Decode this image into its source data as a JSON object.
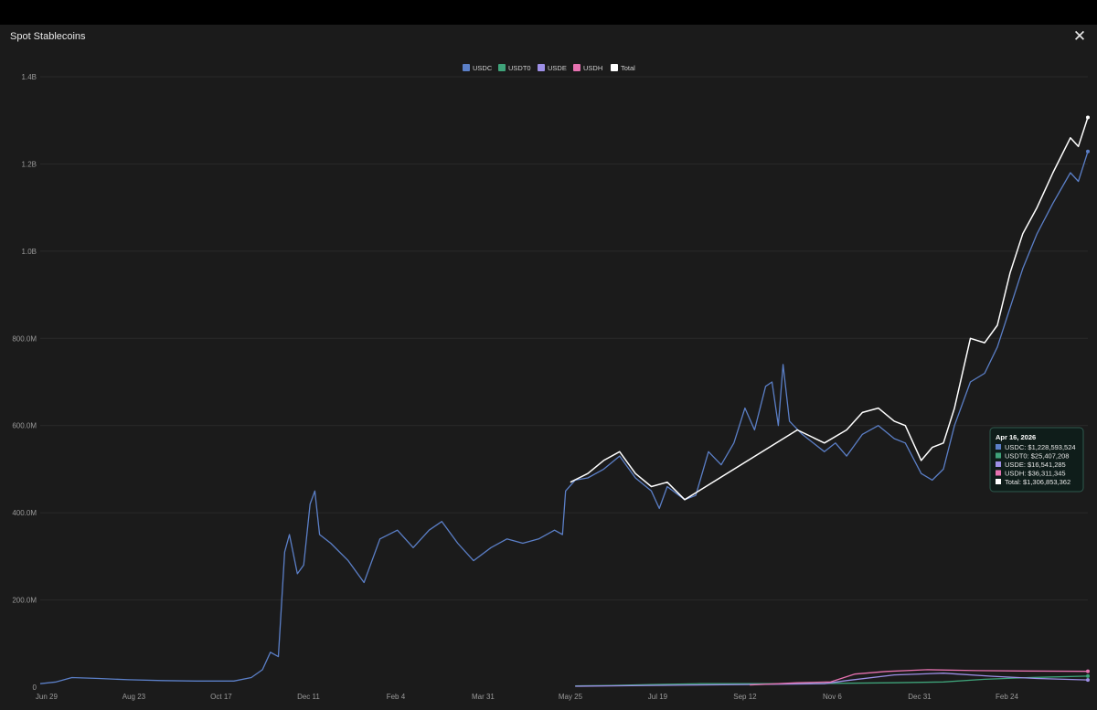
{
  "window": {
    "title": "Spot Stablecoins",
    "close_label": "✕"
  },
  "chart_data": {
    "type": "line",
    "title": "",
    "xlabel": "",
    "ylabel": "",
    "ylim": [
      0,
      1400000000
    ],
    "yticks": [
      {
        "value": 0,
        "label": "0"
      },
      {
        "value": 200000000,
        "label": "200.0M"
      },
      {
        "value": 400000000,
        "label": "400.0M"
      },
      {
        "value": 600000000,
        "label": "600.0M"
      },
      {
        "value": 800000000,
        "label": "800.0M"
      },
      {
        "value": 1000000000,
        "label": "1.0B"
      },
      {
        "value": 1200000000,
        "label": "1.2B"
      },
      {
        "value": 1400000000,
        "label": "1.4B"
      }
    ],
    "x_range": [
      "2024-06-25",
      "2026-04-16"
    ],
    "xticks": [
      {
        "date": "2024-06-29",
        "label": "Jun 29"
      },
      {
        "date": "2024-08-23",
        "label": "Aug 23"
      },
      {
        "date": "2024-10-17",
        "label": "Oct 17"
      },
      {
        "date": "2024-12-11",
        "label": "Dec 11"
      },
      {
        "date": "2025-02-04",
        "label": "Feb 4"
      },
      {
        "date": "2025-03-31",
        "label": "Mar 31"
      },
      {
        "date": "2025-05-25",
        "label": "May 25"
      },
      {
        "date": "2025-07-19",
        "label": "Jul 19"
      },
      {
        "date": "2025-09-12",
        "label": "Sep 12"
      },
      {
        "date": "2025-11-06",
        "label": "Nov 6"
      },
      {
        "date": "2025-12-31",
        "label": "Dec 31"
      },
      {
        "date": "2026-02-24",
        "label": "Feb 24"
      }
    ],
    "legend_position": "top-center",
    "grid": true,
    "series": [
      {
        "name": "USDC",
        "color": "#5b7fc7",
        "points": [
          [
            "2024-06-25",
            8000000
          ],
          [
            "2024-07-05",
            12000000
          ],
          [
            "2024-07-15",
            22000000
          ],
          [
            "2024-08-01",
            20000000
          ],
          [
            "2024-08-20",
            17000000
          ],
          [
            "2024-09-10",
            15000000
          ],
          [
            "2024-10-01",
            14000000
          ],
          [
            "2024-10-25",
            14000000
          ],
          [
            "2024-11-05",
            22000000
          ],
          [
            "2024-11-12",
            40000000
          ],
          [
            "2024-11-17",
            80000000
          ],
          [
            "2024-11-22",
            70000000
          ],
          [
            "2024-11-26",
            310000000
          ],
          [
            "2024-11-29",
            350000000
          ],
          [
            "2024-12-04",
            260000000
          ],
          [
            "2024-12-08",
            280000000
          ],
          [
            "2024-12-12",
            420000000
          ],
          [
            "2024-12-15",
            450000000
          ],
          [
            "2024-12-18",
            350000000
          ],
          [
            "2024-12-25",
            330000000
          ],
          [
            "2025-01-05",
            290000000
          ],
          [
            "2025-01-15",
            240000000
          ],
          [
            "2025-01-25",
            340000000
          ],
          [
            "2025-02-05",
            360000000
          ],
          [
            "2025-02-15",
            320000000
          ],
          [
            "2025-02-25",
            360000000
          ],
          [
            "2025-03-05",
            380000000
          ],
          [
            "2025-03-15",
            330000000
          ],
          [
            "2025-03-25",
            290000000
          ],
          [
            "2025-04-05",
            320000000
          ],
          [
            "2025-04-15",
            340000000
          ],
          [
            "2025-04-25",
            330000000
          ],
          [
            "2025-05-05",
            340000000
          ],
          [
            "2025-05-15",
            360000000
          ],
          [
            "2025-05-20",
            350000000
          ],
          [
            "2025-05-22",
            450000000
          ],
          [
            "2025-05-28",
            475000000
          ],
          [
            "2025-06-05",
            480000000
          ],
          [
            "2025-06-15",
            500000000
          ],
          [
            "2025-06-25",
            530000000
          ],
          [
            "2025-07-05",
            480000000
          ],
          [
            "2025-07-15",
            450000000
          ],
          [
            "2025-07-20",
            410000000
          ],
          [
            "2025-07-25",
            460000000
          ],
          [
            "2025-08-05",
            430000000
          ],
          [
            "2025-08-12",
            440000000
          ],
          [
            "2025-08-20",
            540000000
          ],
          [
            "2025-08-28",
            510000000
          ],
          [
            "2025-09-05",
            560000000
          ],
          [
            "2025-09-12",
            640000000
          ],
          [
            "2025-09-18",
            590000000
          ],
          [
            "2025-09-25",
            690000000
          ],
          [
            "2025-09-29",
            700000000
          ],
          [
            "2025-10-03",
            600000000
          ],
          [
            "2025-10-06",
            740000000
          ],
          [
            "2025-10-10",
            610000000
          ],
          [
            "2025-10-18",
            580000000
          ],
          [
            "2025-10-25",
            560000000
          ],
          [
            "2025-11-01",
            540000000
          ],
          [
            "2025-11-08",
            560000000
          ],
          [
            "2025-11-15",
            530000000
          ],
          [
            "2025-11-25",
            580000000
          ],
          [
            "2025-12-05",
            600000000
          ],
          [
            "2025-12-15",
            570000000
          ],
          [
            "2025-12-22",
            560000000
          ],
          [
            "2026-01-01",
            490000000
          ],
          [
            "2026-01-08",
            475000000
          ],
          [
            "2026-01-15",
            500000000
          ],
          [
            "2026-01-22",
            600000000
          ],
          [
            "2026-02-01",
            700000000
          ],
          [
            "2026-02-10",
            720000000
          ],
          [
            "2026-02-18",
            780000000
          ],
          [
            "2026-02-26",
            870000000
          ],
          [
            "2026-03-06",
            960000000
          ],
          [
            "2026-03-15",
            1040000000
          ],
          [
            "2026-03-25",
            1110000000
          ],
          [
            "2026-04-05",
            1180000000
          ],
          [
            "2026-04-10",
            1160000000
          ],
          [
            "2026-04-16",
            1228593524
          ]
        ]
      },
      {
        "name": "USDT0",
        "color": "#3fa37a",
        "points": [
          [
            "2025-05-28",
            3000000
          ],
          [
            "2025-06-20",
            4000000
          ],
          [
            "2025-07-15",
            6000000
          ],
          [
            "2025-08-15",
            8000000
          ],
          [
            "2025-09-15",
            8000000
          ],
          [
            "2025-10-15",
            8000000
          ],
          [
            "2025-11-15",
            9000000
          ],
          [
            "2025-12-15",
            10000000
          ],
          [
            "2026-01-15",
            12000000
          ],
          [
            "2026-02-10",
            18000000
          ],
          [
            "2026-03-10",
            22000000
          ],
          [
            "2026-04-16",
            25407208
          ]
        ]
      },
      {
        "name": "USDE",
        "color": "#9d8fe6",
        "points": [
          [
            "2025-05-28",
            2000000
          ],
          [
            "2025-07-15",
            4000000
          ],
          [
            "2025-09-15",
            6000000
          ],
          [
            "2025-11-01",
            8000000
          ],
          [
            "2025-11-15",
            15000000
          ],
          [
            "2025-12-15",
            28000000
          ],
          [
            "2026-01-15",
            32000000
          ],
          [
            "2026-02-15",
            25000000
          ],
          [
            "2026-03-15",
            20000000
          ],
          [
            "2026-04-16",
            16541285
          ]
        ]
      },
      {
        "name": "USDH",
        "color": "#e672b0",
        "points": [
          [
            "2025-09-15",
            5000000
          ],
          [
            "2025-10-15",
            10000000
          ],
          [
            "2025-11-05",
            12000000
          ],
          [
            "2025-11-20",
            30000000
          ],
          [
            "2025-12-10",
            36000000
          ],
          [
            "2026-01-05",
            40000000
          ],
          [
            "2026-02-05",
            38000000
          ],
          [
            "2026-03-05",
            37000000
          ],
          [
            "2026-04-16",
            36311345
          ]
        ]
      },
      {
        "name": "Total",
        "color": "#ffffff",
        "points": [
          [
            "2025-05-25",
            470000000
          ],
          [
            "2025-06-05",
            490000000
          ],
          [
            "2025-06-15",
            520000000
          ],
          [
            "2025-06-25",
            540000000
          ],
          [
            "2025-07-05",
            490000000
          ],
          [
            "2025-07-15",
            460000000
          ],
          [
            "2025-07-25",
            470000000
          ],
          [
            "2025-08-05",
            430000000
          ],
          [
            "2025-10-15",
            590000000
          ],
          [
            "2025-11-01",
            560000000
          ],
          [
            "2025-11-15",
            590000000
          ],
          [
            "2025-11-25",
            630000000
          ],
          [
            "2025-12-05",
            640000000
          ],
          [
            "2025-12-15",
            610000000
          ],
          [
            "2025-12-22",
            600000000
          ],
          [
            "2026-01-01",
            520000000
          ],
          [
            "2026-01-08",
            550000000
          ],
          [
            "2026-01-15",
            560000000
          ],
          [
            "2026-01-22",
            640000000
          ],
          [
            "2026-02-01",
            800000000
          ],
          [
            "2026-02-10",
            790000000
          ],
          [
            "2026-02-18",
            830000000
          ],
          [
            "2026-02-26",
            950000000
          ],
          [
            "2026-03-06",
            1040000000
          ],
          [
            "2026-03-15",
            1100000000
          ],
          [
            "2026-03-25",
            1180000000
          ],
          [
            "2026-04-05",
            1260000000
          ],
          [
            "2026-04-10",
            1240000000
          ],
          [
            "2026-04-16",
            1306853362
          ]
        ]
      }
    ],
    "tooltip": {
      "date": "2026-04-16",
      "title": "Apr 16, 2026",
      "rows": [
        {
          "text": "USDC: $1,228,593,524",
          "color": "#5b7fc7"
        },
        {
          "text": "USDT0: $25,407,208",
          "color": "#3fa37a"
        },
        {
          "text": "USDE: $16,541,285",
          "color": "#9d8fe6"
        },
        {
          "text": "USDH: $36,311,345",
          "color": "#e672b0"
        },
        {
          "text": "Total: $1,306,853,362",
          "color": "#ffffff"
        }
      ]
    }
  }
}
